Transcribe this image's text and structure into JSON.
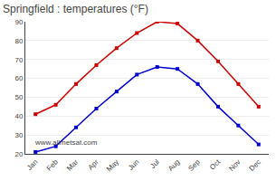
{
  "chart_data": {
    "type": "line",
    "title": "Springfield : temperatures (°F)",
    "categories": [
      "Jan",
      "Feb",
      "Mar",
      "Apr",
      "May",
      "Jun",
      "Jul",
      "Aug",
      "Sep",
      "Oct",
      "Nov",
      "Dec"
    ],
    "series": [
      {
        "color": "#cc0000",
        "values": [
          41,
          46,
          57,
          67,
          76,
          84,
          90,
          89,
          80,
          69,
          57,
          45
        ]
      },
      {
        "color": "#0000cc",
        "values": [
          21,
          24,
          34,
          44,
          53,
          62,
          66,
          65,
          57,
          45,
          35,
          25
        ]
      }
    ],
    "marker": "square",
    "ylim": [
      20,
      90
    ],
    "yticks": [
      20,
      30,
      40,
      50,
      60,
      70,
      80,
      90
    ],
    "grid": true,
    "annotations": [
      "www.allmetsat.com"
    ]
  }
}
